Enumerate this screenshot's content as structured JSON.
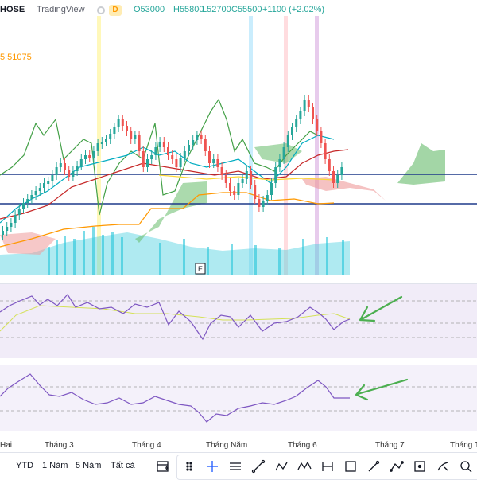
{
  "legend": {
    "symbol": "HOSE",
    "source": "TradingView",
    "interval_badge": "D",
    "open": "O53000",
    "high": "H55800",
    "low": "L52700",
    "close": "C55500",
    "change": "+1100 (+2.02%)"
  },
  "ma_label": "5 51075",
  "x_axis": {
    "labels": [
      "Hai",
      "Tháng 3",
      "Tháng 4",
      "Tháng Năm",
      "Tháng 6",
      "Tháng 7",
      "Tháng T"
    ]
  },
  "earnings_marker": "E",
  "toolbar": {
    "ranges": [
      "YTD",
      "1 Năm",
      "5 Năm",
      "Tất cả"
    ],
    "tools": [
      "drag-handle-icon",
      "crosshair-icon",
      "horizontal-lines-icon",
      "trend-line-icon",
      "abcd-pattern-icon",
      "xabcd-pattern-icon",
      "date-range-icon",
      "rectangle-icon",
      "magic-brush-icon",
      "nodes-icon",
      "anchor-icon",
      "brush-icon",
      "zoom-icon"
    ]
  },
  "colors": {
    "up": "#26a69a",
    "down": "#ef5350",
    "cloud_green": "#4caf50",
    "cloud_red": "#f44336",
    "oscillator_bg": "#ede7f6",
    "arrow": "#4caf50",
    "level_line": "#1e3a8a"
  }
}
